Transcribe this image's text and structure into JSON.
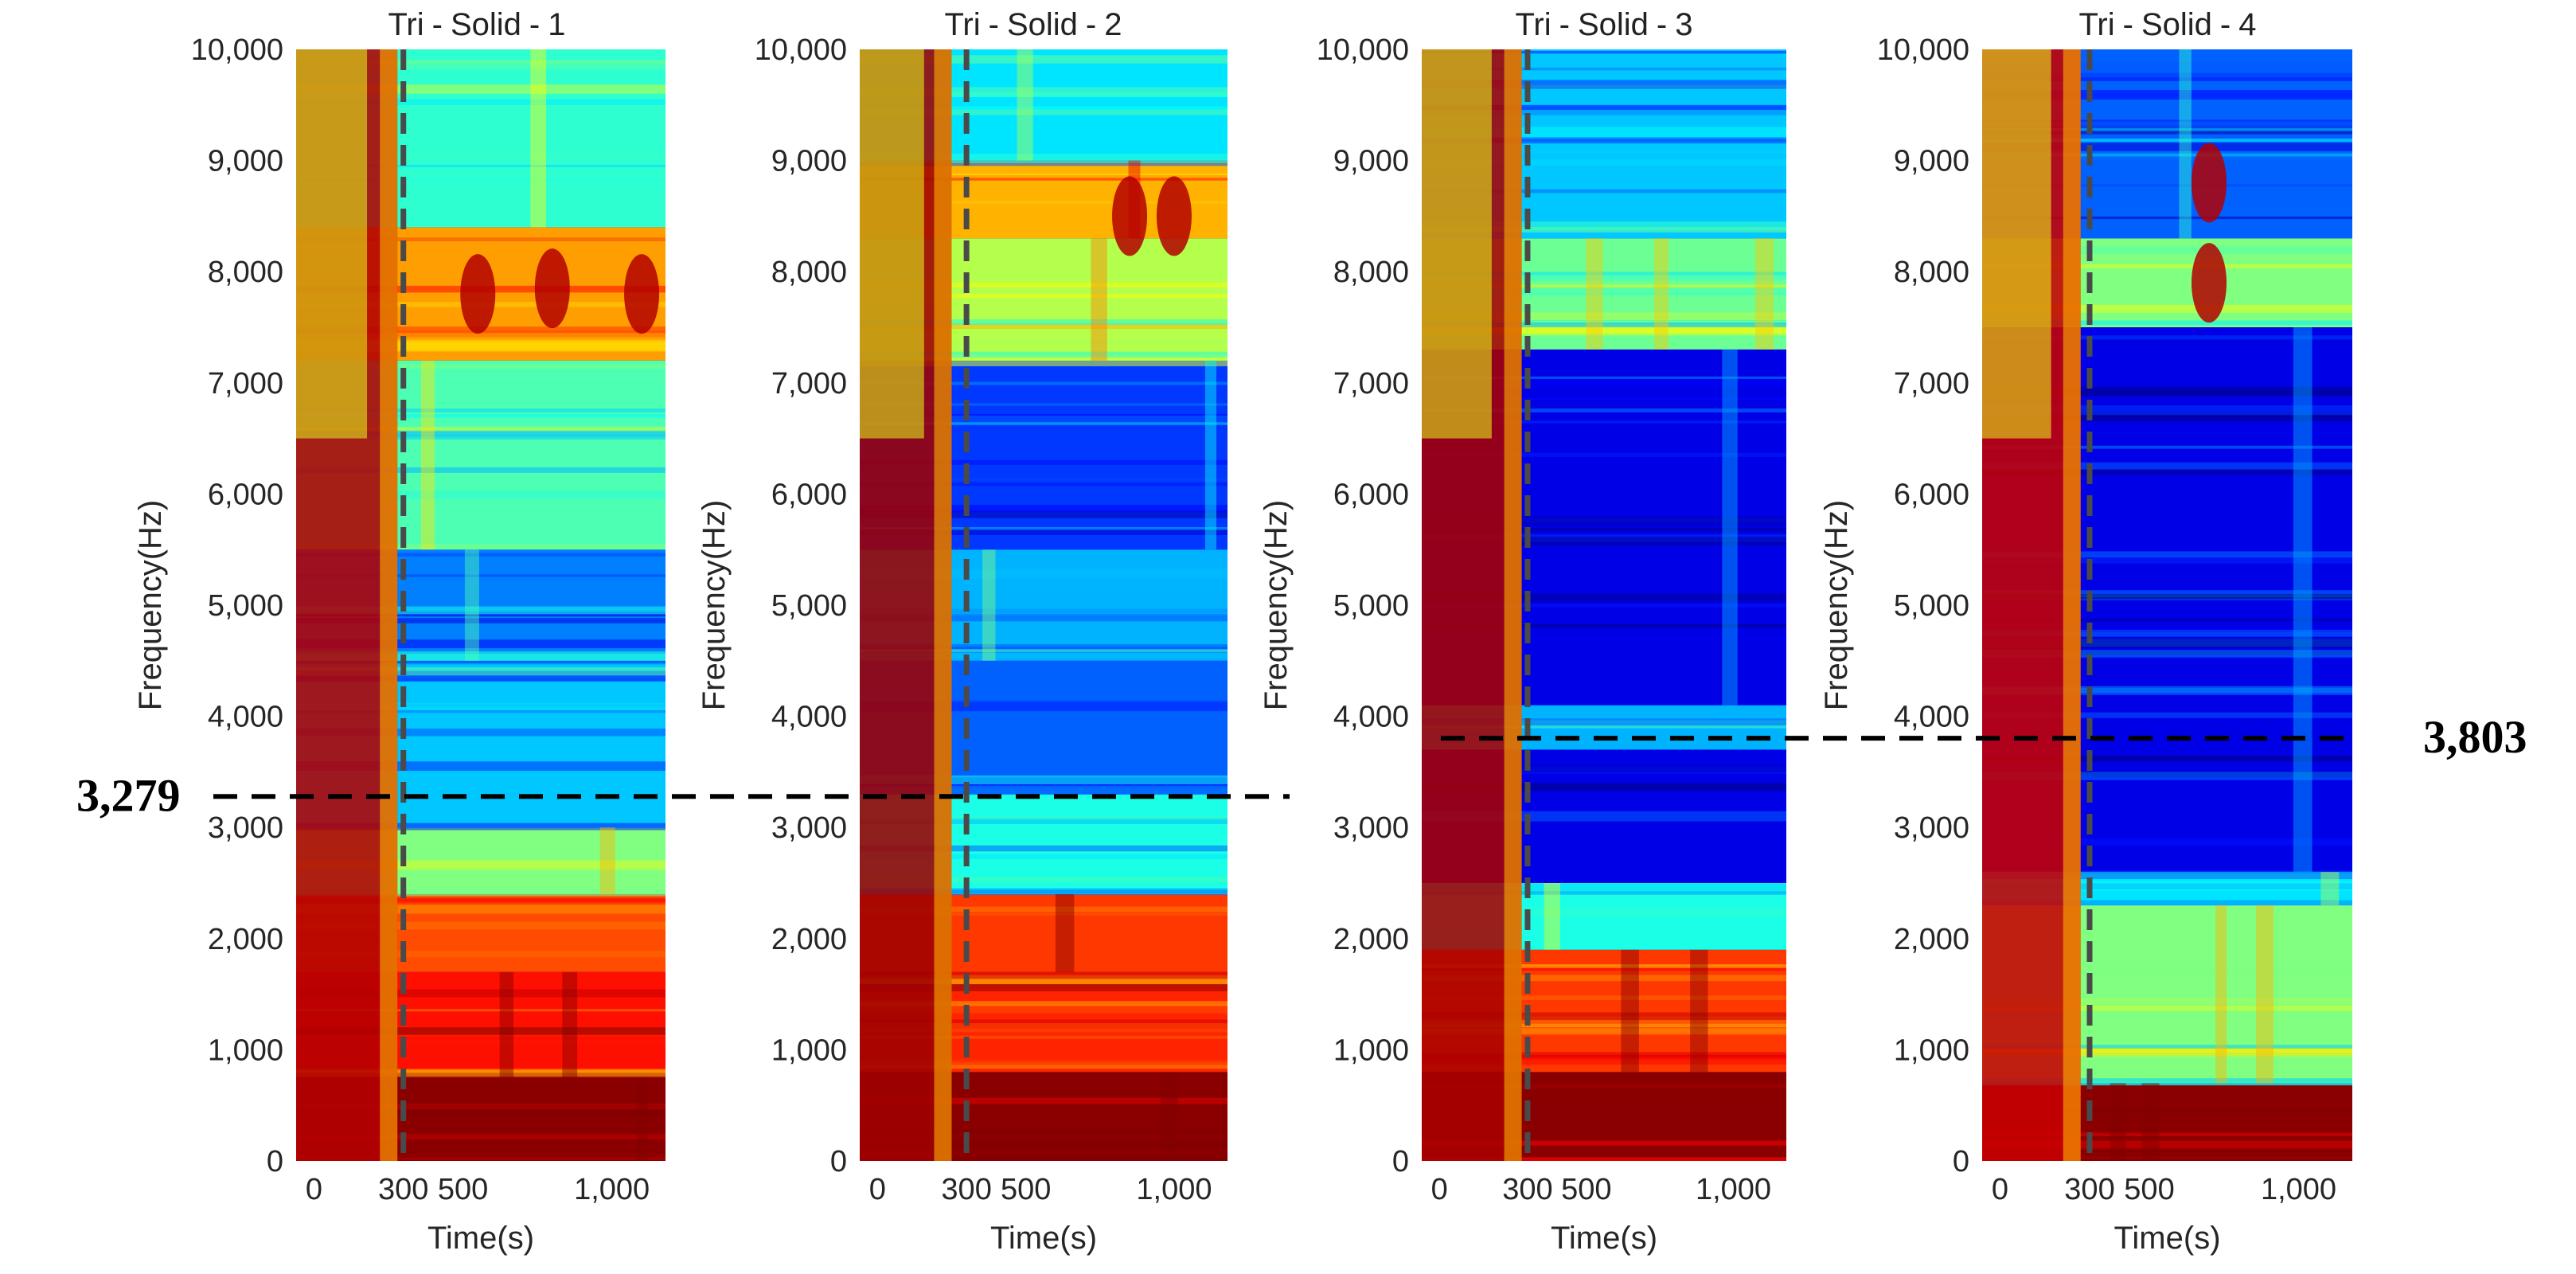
{
  "chart_data": {
    "type": "heatmap",
    "description_units": {
      "x": "Time(s)",
      "y": "Frequency(Hz)"
    },
    "reference_time": 300,
    "panels": [
      {
        "title": "Tri - Solid - 1",
        "title_parts": [
          "Tri",
          "Solid",
          "1"
        ],
        "xlabel": "Time(s)",
        "ylabel": "Frequency(Hz)",
        "xlim": [
          -60,
          1180
        ],
        "ylim": [
          0,
          10000
        ],
        "xticks": [
          0,
          300,
          500,
          1000
        ],
        "xtick_labels": [
          "0",
          "300",
          "500",
          "1,000"
        ],
        "yticks": [
          0,
          1000,
          2000,
          3000,
          4000,
          5000,
          6000,
          7000,
          8000,
          9000,
          10000
        ],
        "ytick_labels": [
          "0",
          "1,000",
          "2,000",
          "3,000",
          "4,000",
          "5,000",
          "6,000",
          "7,000",
          "8,000",
          "9,000",
          "10,000"
        ],
        "bands": [
          {
            "f0": 0,
            "f1": 750,
            "level": 0.99
          },
          {
            "f0": 750,
            "f1": 1700,
            "level": 0.86
          },
          {
            "f0": 1700,
            "f1": 2400,
            "level": 0.8
          },
          {
            "f0": 2400,
            "f1": 3000,
            "level": 0.5
          },
          {
            "f0": 3000,
            "f1": 4500,
            "level": 0.32
          },
          {
            "f0": 4500,
            "f1": 5500,
            "level": 0.25
          },
          {
            "f0": 5500,
            "f1": 7200,
            "level": 0.45
          },
          {
            "f0": 7200,
            "f1": 8400,
            "level": 0.72
          },
          {
            "f0": 8400,
            "f1": 10000,
            "level": 0.42
          }
        ],
        "transient_end": 280,
        "transient_level": 0.95,
        "hot_peaks": [
          {
            "t": 550,
            "f": 7800
          },
          {
            "t": 1100,
            "f": 7800
          },
          {
            "t": 800,
            "f": 7850
          }
        ]
      },
      {
        "title": "Tri - Solid - 2",
        "title_parts": [
          "Tri",
          "Solid",
          "2"
        ],
        "xlabel": "Time(s)",
        "ylabel": "Frequency(Hz)",
        "xlim": [
          -60,
          1180
        ],
        "ylim": [
          0,
          10000
        ],
        "xticks": [
          0,
          300,
          500,
          1000
        ],
        "xtick_labels": [
          "0",
          "300",
          "500",
          "1,000"
        ],
        "yticks": [
          0,
          1000,
          2000,
          3000,
          4000,
          5000,
          6000,
          7000,
          8000,
          9000,
          10000
        ],
        "ytick_labels": [
          "0",
          "1,000",
          "2,000",
          "3,000",
          "4,000",
          "5,000",
          "6,000",
          "7,000",
          "8,000",
          "9,000",
          "10,000"
        ],
        "bands": [
          {
            "f0": 0,
            "f1": 800,
            "level": 0.99
          },
          {
            "f0": 800,
            "f1": 1700,
            "level": 0.84
          },
          {
            "f0": 1700,
            "f1": 2400,
            "level": 0.82
          },
          {
            "f0": 2400,
            "f1": 3300,
            "level": 0.4
          },
          {
            "f0": 3300,
            "f1": 4500,
            "level": 0.22
          },
          {
            "f0": 4500,
            "f1": 5500,
            "level": 0.3
          },
          {
            "f0": 5500,
            "f1": 7200,
            "level": 0.18
          },
          {
            "f0": 7200,
            "f1": 8300,
            "level": 0.55
          },
          {
            "f0": 8300,
            "f1": 9000,
            "level": 0.7
          },
          {
            "f0": 9000,
            "f1": 10000,
            "level": 0.35
          }
        ],
        "transient_end": 250,
        "transient_level": 0.97,
        "hot_peaks": [
          {
            "t": 850,
            "f": 8500
          },
          {
            "t": 1000,
            "f": 8500
          }
        ]
      },
      {
        "title": "Tri - Solid - 3",
        "title_parts": [
          "Tri",
          "Solid",
          "3"
        ],
        "xlabel": "Time(s)",
        "ylabel": "Frequency(Hz)",
        "xlim": [
          -60,
          1180
        ],
        "ylim": [
          0,
          10000
        ],
        "xticks": [
          0,
          300,
          500,
          1000
        ],
        "xtick_labels": [
          "0",
          "300",
          "500",
          "1,000"
        ],
        "yticks": [
          0,
          1000,
          2000,
          3000,
          4000,
          5000,
          6000,
          7000,
          8000,
          9000,
          10000
        ],
        "ytick_labels": [
          "0",
          "1,000",
          "2,000",
          "3,000",
          "4,000",
          "5,000",
          "6,000",
          "7,000",
          "8,000",
          "9,000",
          "10,000"
        ],
        "bands": [
          {
            "f0": 0,
            "f1": 800,
            "level": 0.99
          },
          {
            "f0": 800,
            "f1": 1900,
            "level": 0.82
          },
          {
            "f0": 1900,
            "f1": 2500,
            "level": 0.4
          },
          {
            "f0": 2500,
            "f1": 3700,
            "level": 0.1
          },
          {
            "f0": 3700,
            "f1": 4100,
            "level": 0.3
          },
          {
            "f0": 4100,
            "f1": 7300,
            "level": 0.1
          },
          {
            "f0": 7300,
            "f1": 8300,
            "level": 0.48
          },
          {
            "f0": 8300,
            "f1": 10000,
            "level": 0.32
          }
        ],
        "transient_end": 280,
        "transient_level": 0.96,
        "hot_peaks": []
      },
      {
        "title": "Tri - Solid - 4",
        "title_parts": [
          "Tri",
          "Solid",
          "4"
        ],
        "xlabel": "Time(s)",
        "ylabel": "Frequency(Hz)",
        "xlim": [
          -60,
          1180
        ],
        "ylim": [
          0,
          10000
        ],
        "xticks": [
          0,
          300,
          500,
          1000
        ],
        "xtick_labels": [
          "0",
          "300",
          "500",
          "1,000"
        ],
        "yticks": [
          0,
          1000,
          2000,
          3000,
          4000,
          5000,
          6000,
          7000,
          8000,
          9000,
          10000
        ],
        "ytick_labels": [
          "0",
          "1,000",
          "2,000",
          "3,000",
          "4,000",
          "5,000",
          "6,000",
          "7,000",
          "8,000",
          "9,000",
          "10,000"
        ],
        "bands": [
          {
            "f0": 0,
            "f1": 700,
            "level": 0.99
          },
          {
            "f0": 700,
            "f1": 2300,
            "level": 0.5
          },
          {
            "f0": 2300,
            "f1": 2600,
            "level": 0.35
          },
          {
            "f0": 2600,
            "f1": 7500,
            "level": 0.1
          },
          {
            "f0": 7500,
            "f1": 8300,
            "level": 0.5
          },
          {
            "f0": 8300,
            "f1": 10000,
            "level": 0.22
          }
        ],
        "transient_end": 270,
        "transient_level": 0.93,
        "hot_peaks": [
          {
            "t": 700,
            "f": 7900
          },
          {
            "t": 700,
            "f": 8800
          }
        ]
      }
    ],
    "annotations": [
      {
        "label": "3,279",
        "frequency": 3279,
        "spans_panels": [
          1,
          2
        ]
      },
      {
        "label": "3,803",
        "frequency": 3803,
        "spans_panels": [
          3,
          4
        ]
      }
    ],
    "colormap": "jet"
  }
}
